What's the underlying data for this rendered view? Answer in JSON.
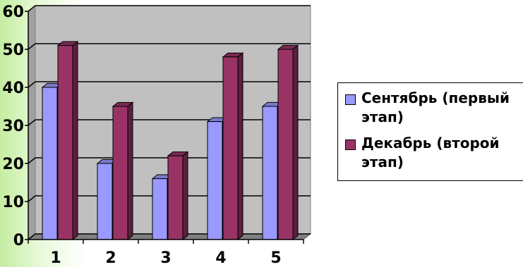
{
  "chart_data": {
    "type": "bar",
    "categories": [
      "1",
      "2",
      "3",
      "4",
      "5"
    ],
    "series": [
      {
        "name": "Сентябрь (первый\nэтап)",
        "values": [
          40,
          20,
          16,
          31,
          35
        ],
        "color": "#9999ff"
      },
      {
        "name": "Декабрь (второй\nэтап)",
        "values": [
          51,
          35,
          22,
          48,
          50
        ],
        "color": "#993366"
      }
    ],
    "y_ticks": [
      "0",
      "10",
      "20",
      "30",
      "40",
      "50",
      "60"
    ],
    "ylim": [
      0,
      60
    ],
    "grid": true,
    "three_d": true,
    "legend_position": "right",
    "plot_background": "#c0c0c0"
  }
}
